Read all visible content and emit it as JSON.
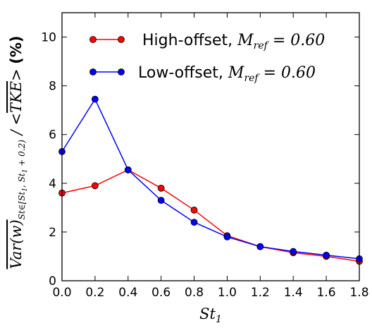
{
  "chart_data": {
    "type": "line",
    "x": [
      0.0,
      0.2,
      0.4,
      0.6,
      0.8,
      1.0,
      1.2,
      1.4,
      1.6,
      1.8
    ],
    "series": [
      {
        "name": "High-offset, M_ref = 0.60",
        "label_text": "High-offset, ",
        "label_math": "Mref = 0.60",
        "color": "#ff0000",
        "values": [
          3.6,
          3.9,
          4.55,
          3.8,
          2.9,
          1.85,
          1.4,
          1.15,
          1.0,
          0.8
        ]
      },
      {
        "name": "Low-offset, M_ref = 0.60",
        "label_text": "Low-offset, ",
        "label_math": "Mref = 0.60",
        "color": "#0000ff",
        "values": [
          5.3,
          7.45,
          4.55,
          3.3,
          2.4,
          1.8,
          1.4,
          1.2,
          1.05,
          0.9
        ]
      }
    ],
    "xlabel": "St1",
    "ylabel": "Var(w) St∈[St1, St1+0.2] / <TKE> (%)",
    "xlim": [
      0.0,
      1.8
    ],
    "ylim": [
      0,
      11
    ],
    "xticks": [
      "0.0",
      "0.2",
      "0.4",
      "0.6",
      "0.8",
      "1.0",
      "1.2",
      "1.4",
      "1.6",
      "1.8"
    ],
    "yticks": [
      "0",
      "2",
      "4",
      "6",
      "8",
      "10"
    ],
    "grid": false,
    "legend_position": "top-center"
  }
}
